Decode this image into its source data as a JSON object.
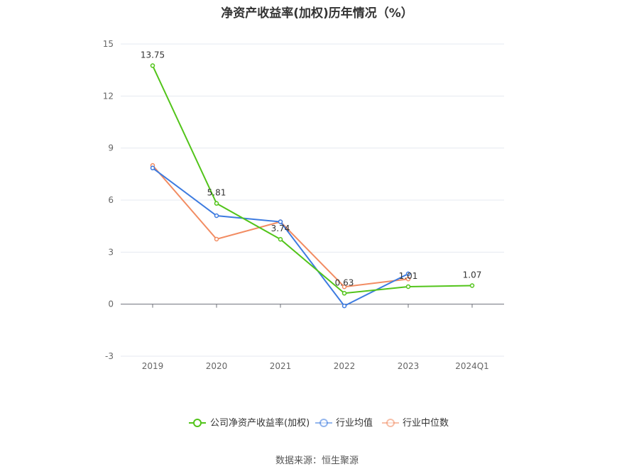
{
  "chart_data": {
    "type": "line",
    "title": "净资产收益率(加权)历年情况（%）",
    "categories": [
      "2019",
      "2020",
      "2021",
      "2022",
      "2023",
      "2024Q1"
    ],
    "ylim": [
      -3,
      15
    ],
    "yticks": [
      -3,
      0,
      3,
      6,
      9,
      12,
      15
    ],
    "grid": true,
    "legend_position": "bottom",
    "series": [
      {
        "name": "公司净资产收益率(加权)",
        "color": "#52c41a",
        "values": [
          13.75,
          5.81,
          3.74,
          0.63,
          1.01,
          1.07
        ],
        "labels": [
          "13.75",
          "5.81",
          "3.74",
          "0.63",
          "1.01",
          "1.07"
        ]
      },
      {
        "name": "行业均值",
        "color": "#3d7be0",
        "values": [
          7.85,
          5.1,
          4.75,
          -0.1,
          1.75,
          null
        ]
      },
      {
        "name": "行业中位数",
        "color": "#f28c62",
        "values": [
          8.0,
          3.75,
          4.75,
          1.0,
          1.45,
          null
        ]
      }
    ]
  },
  "source": "数据来源：恒生聚源"
}
